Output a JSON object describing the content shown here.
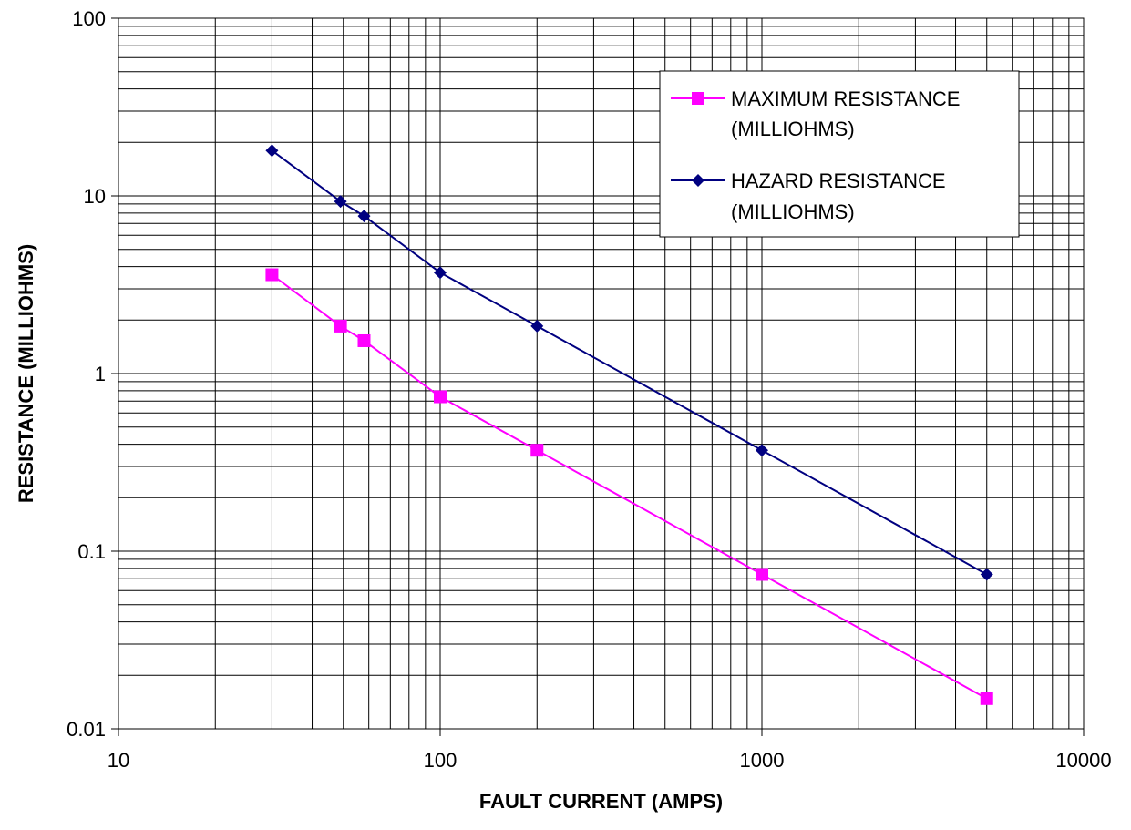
{
  "chart_data": {
    "type": "line",
    "title": "",
    "xlabel": "FAULT CURRENT (AMPS)",
    "ylabel": "RESISTANCE (MILLIOHMS)",
    "x_scale": "log",
    "y_scale": "log",
    "xlim": [
      10,
      10000
    ],
    "ylim": [
      0.01,
      100
    ],
    "x_ticks": [
      "10",
      "100",
      "1000",
      "10000"
    ],
    "y_ticks": [
      "100",
      "10",
      "1",
      "0.1",
      "0.01"
    ],
    "grid": true,
    "legend_position": "top-right",
    "series": [
      {
        "name": "MAXIMUM RESISTANCE",
        "name_line2": "(MILLIOHMS)",
        "color": "#FF00FF",
        "marker": "square",
        "x": [
          30,
          49,
          58,
          100,
          200,
          1000,
          5000
        ],
        "y": [
          3.6,
          1.85,
          1.53,
          0.74,
          0.37,
          0.074,
          0.0148
        ]
      },
      {
        "name": "HAZARD RESISTANCE",
        "name_line2": "(MILLIOHMS)",
        "color": "#000080",
        "marker": "diamond",
        "x": [
          30,
          49,
          58,
          100,
          200,
          1000,
          5000
        ],
        "y": [
          18,
          9.3,
          7.7,
          3.7,
          1.85,
          0.37,
          0.074
        ]
      }
    ]
  }
}
